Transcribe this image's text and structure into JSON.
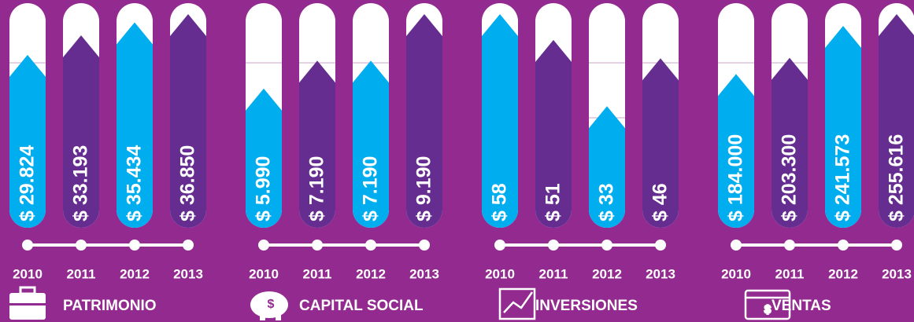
{
  "chart_data": [
    {
      "type": "bar",
      "title": "PATRIMONIO",
      "categories": [
        "2010",
        "2011",
        "2012",
        "2013"
      ],
      "values": [
        29824,
        33193,
        35434,
        36850
      ],
      "value_labels": [
        "$ 29.824",
        "$ 33.193",
        "$ 35.434",
        "$ 36.850"
      ],
      "colors": [
        "#00aeef",
        "#662d91",
        "#00aeef",
        "#662d91"
      ]
    },
    {
      "type": "bar",
      "title": "CAPITAL SOCIAL",
      "categories": [
        "2010",
        "2011",
        "2012",
        "2013"
      ],
      "values": [
        5990,
        7190,
        7190,
        9190
      ],
      "value_labels": [
        "$ 5.990",
        "$ 7.190",
        "$ 7.190",
        "$ 9.190"
      ],
      "colors": [
        "#00aeef",
        "#662d91",
        "#00aeef",
        "#662d91"
      ]
    },
    {
      "type": "bar",
      "title": "INVERSIONES",
      "categories": [
        "2010",
        "2011",
        "2012",
        "2013"
      ],
      "values": [
        58,
        51,
        33,
        46
      ],
      "value_labels": [
        "$ 58",
        "$ 51",
        "$ 33",
        "$ 46"
      ],
      "colors": [
        "#00aeef",
        "#662d91",
        "#00aeef",
        "#662d91"
      ]
    },
    {
      "type": "bar",
      "title": "VENTAS",
      "categories": [
        "2010",
        "2011",
        "2012",
        "2013"
      ],
      "values": [
        184000,
        203300,
        241573,
        255616
      ],
      "value_labels": [
        "$ 184.000",
        "$ 203.300",
        "$ 241.573",
        "$ 255.616"
      ],
      "colors": [
        "#00aeef",
        "#662d91",
        "#00aeef",
        "#662d91"
      ]
    }
  ]
}
